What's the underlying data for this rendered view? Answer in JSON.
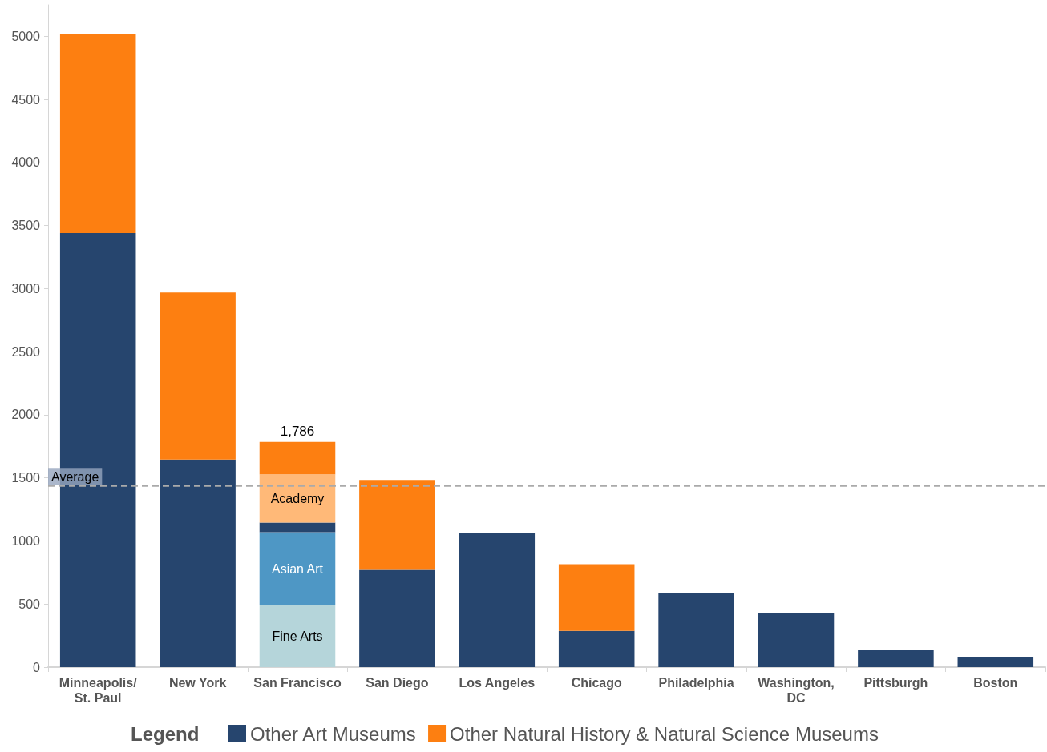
{
  "chart_data": {
    "type": "bar",
    "stacked": true,
    "categories": [
      "Minneapolis/\nSt. Paul",
      "New York",
      "San Francisco",
      "San Diego",
      "Los Angeles",
      "Chicago",
      "Philadelphia",
      "Washington,\nDC",
      "Pittsburgh",
      "Boston"
    ],
    "series": [
      {
        "name": "Fine Arts",
        "color": "#b5d5da",
        "values": [
          null,
          null,
          490,
          null,
          null,
          null,
          null,
          null,
          null,
          null
        ]
      },
      {
        "name": "Asian Art",
        "color": "#4e97c5",
        "values": [
          null,
          null,
          580,
          null,
          null,
          null,
          null,
          null,
          null,
          null
        ]
      },
      {
        "name": "Other Art Museums",
        "color": "#26456e",
        "values": [
          3440,
          1645,
          76,
          771,
          1064,
          287,
          586,
          427,
          134,
          83
        ]
      },
      {
        "name": "Academy",
        "color": "#ffb978",
        "values": [
          null,
          null,
          383,
          null,
          null,
          null,
          null,
          null,
          null,
          null
        ]
      },
      {
        "name": "Other Natural History & Natural Science Museums",
        "color": "#fd7f11",
        "values": [
          1580,
          1325,
          257,
          713,
          null,
          528,
          null,
          null,
          null,
          null
        ]
      }
    ],
    "totals": [
      null,
      null,
      "1,786",
      null,
      null,
      null,
      null,
      null,
      null,
      null
    ],
    "ylim": [
      0,
      5250
    ],
    "yticks": [
      0,
      500,
      1000,
      1500,
      2000,
      2500,
      3000,
      3500,
      4000,
      4500,
      5000
    ],
    "ref_lines": [
      {
        "axis": "y",
        "value": 1440,
        "label": "Average",
        "color": "#aaaaaa",
        "line_style": "dashed"
      }
    ],
    "legend_title": "Legend",
    "legend": "bottom",
    "grid": false
  }
}
